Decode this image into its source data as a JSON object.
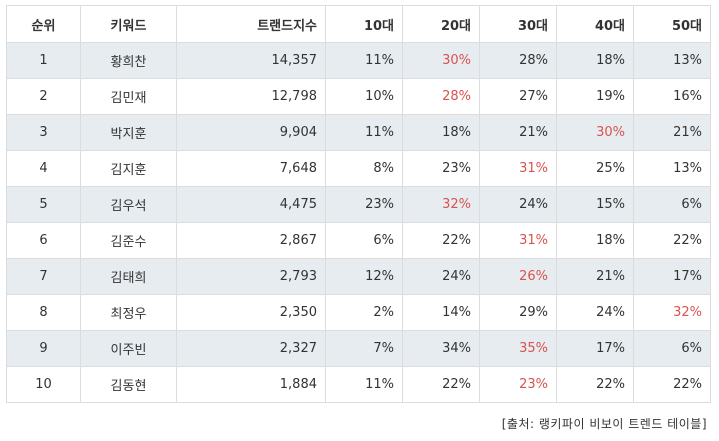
{
  "table": {
    "headers": [
      "순위",
      "키워드",
      "트랜드지수",
      "10대",
      "20대",
      "30대",
      "40대",
      "50대"
    ],
    "rows": [
      {
        "rank": "1",
        "keyword": "황희찬",
        "index": "14,357",
        "a10": "11%",
        "a20": "30%",
        "a30": "28%",
        "a40": "18%",
        "a50": "13%",
        "highlight": "a20"
      },
      {
        "rank": "2",
        "keyword": "김민재",
        "index": "12,798",
        "a10": "10%",
        "a20": "28%",
        "a30": "27%",
        "a40": "19%",
        "a50": "16%",
        "highlight": "a20"
      },
      {
        "rank": "3",
        "keyword": "박지훈",
        "index": "9,904",
        "a10": "11%",
        "a20": "18%",
        "a30": "21%",
        "a40": "30%",
        "a50": "21%",
        "highlight": "a40"
      },
      {
        "rank": "4",
        "keyword": "김지훈",
        "index": "7,648",
        "a10": "8%",
        "a20": "23%",
        "a30": "31%",
        "a40": "25%",
        "a50": "13%",
        "highlight": "a30"
      },
      {
        "rank": "5",
        "keyword": "김우석",
        "index": "4,475",
        "a10": "23%",
        "a20": "32%",
        "a30": "24%",
        "a40": "15%",
        "a50": "6%",
        "highlight": "a20"
      },
      {
        "rank": "6",
        "keyword": "김준수",
        "index": "2,867",
        "a10": "6%",
        "a20": "22%",
        "a30": "31%",
        "a40": "18%",
        "a50": "22%",
        "highlight": "a30"
      },
      {
        "rank": "7",
        "keyword": "김태희",
        "index": "2,793",
        "a10": "12%",
        "a20": "24%",
        "a30": "26%",
        "a40": "21%",
        "a50": "17%",
        "highlight": "a30"
      },
      {
        "rank": "8",
        "keyword": "최정우",
        "index": "2,350",
        "a10": "2%",
        "a20": "14%",
        "a30": "29%",
        "a40": "24%",
        "a50": "32%",
        "highlight": "a50"
      },
      {
        "rank": "9",
        "keyword": "이주빈",
        "index": "2,327",
        "a10": "7%",
        "a20": "34%",
        "a30": "35%",
        "a40": "17%",
        "a50": "6%",
        "highlight": "a30"
      },
      {
        "rank": "10",
        "keyword": "김동현",
        "index": "1,884",
        "a10": "11%",
        "a20": "22%",
        "a30": "23%",
        "a40": "22%",
        "a50": "22%",
        "highlight": "a30"
      }
    ]
  },
  "source": "[출처: 랭키파이 비보이 트렌드 테이블]",
  "colors": {
    "highlight": "#d9534f",
    "shade": "#e6ecf0",
    "border": "#dcdcdc"
  }
}
